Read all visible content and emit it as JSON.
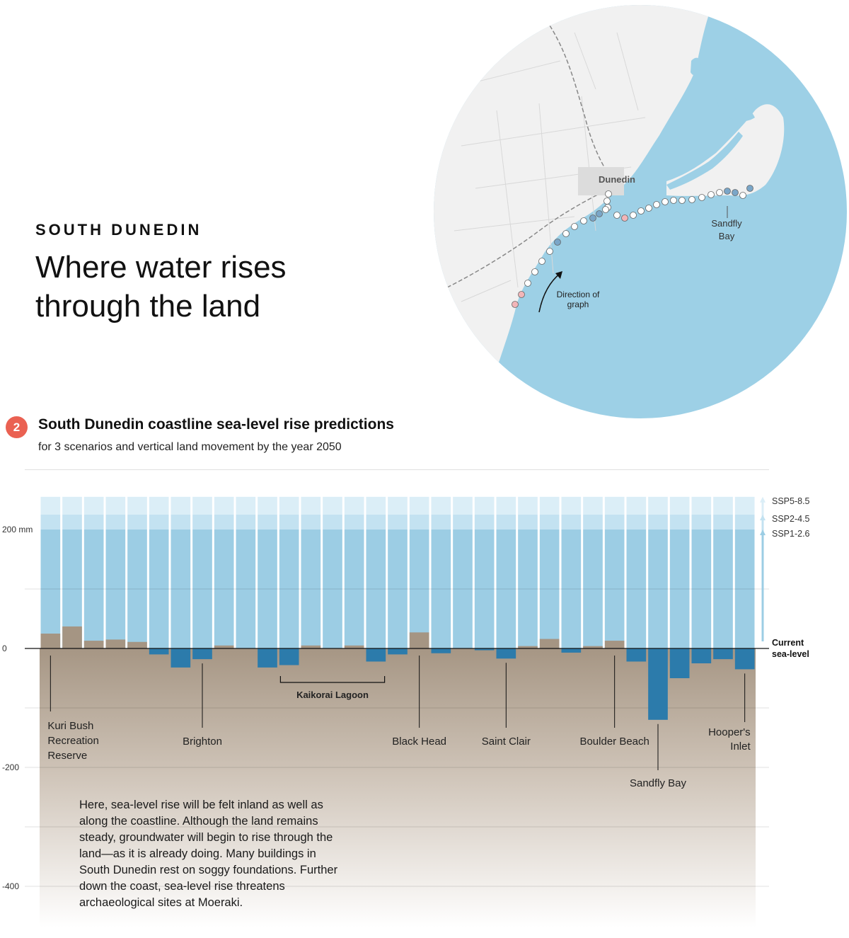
{
  "header": {
    "kicker": "SOUTH DUNEDIN",
    "headline": "Where water rises through the land"
  },
  "map": {
    "city_label": "Dunedin",
    "bay_label_line1": "Sandfly",
    "bay_label_line2": "Bay",
    "direction_line1": "Direction of",
    "direction_line2": "graph",
    "colors": {
      "sea": "#9dd0e6",
      "land": "#f0f0f0",
      "marker_neutral": "#ffffff",
      "marker_subsiding": "#7aa6c8",
      "marker_rising": "#f2b5b8"
    }
  },
  "chart_header": {
    "number": "2",
    "title": "South Dunedin coastline sea-level rise predictions",
    "subtitle": "for 3 scenarios and vertical land movement by the year 2050"
  },
  "chart_data": {
    "type": "bar",
    "ylabel": "mm",
    "ylim": [
      -460,
      255
    ],
    "yticks": [
      {
        "value": 200,
        "label": "200 mm"
      },
      {
        "value": 0,
        "label": "0"
      },
      {
        "value": -200,
        "label": "-200"
      },
      {
        "value": -400,
        "label": "-400"
      }
    ],
    "scenarios": [
      {
        "name": "SSP5-8.5",
        "value": 255,
        "color": "#dbeef7"
      },
      {
        "name": "SSP2-4.5",
        "value": 225,
        "color": "#c3e2f1"
      },
      {
        "name": "SSP1-2.6",
        "value": 200,
        "color": "#9ccde4"
      }
    ],
    "baseline_label": "Current sea-level",
    "vertical_land_movement": [
      25,
      37,
      13,
      15,
      11,
      -10,
      -32,
      -18,
      5,
      0,
      -32,
      -28,
      5,
      0,
      5,
      -22,
      -10,
      27,
      -8,
      0,
      -3,
      -17,
      4,
      16,
      -7,
      4,
      13,
      -22,
      -120,
      -50,
      -25,
      -18,
      -35
    ],
    "location_labels": [
      {
        "text": "Kuri Bush Recreation Reserve",
        "index": 0
      },
      {
        "text": "Brighton",
        "index": 7
      },
      {
        "text": "Kaikorai Lagoon",
        "index_start": 11,
        "index_end": 15
      },
      {
        "text": "Black Head",
        "index": 17
      },
      {
        "text": "Saint Clair",
        "index": 21
      },
      {
        "text": "Boulder Beach",
        "index": 26
      },
      {
        "text": "Sandfly Bay",
        "index": 28
      },
      {
        "text": "Hooper's Inlet",
        "index": 32
      }
    ],
    "colors": {
      "rise": "#a59583",
      "subsidence": "#2c7bab"
    }
  },
  "annotation": "Here, sea-level rise will be felt inland as well as along the coastline. Although the land remains steady, groundwater will begin to rise through the land—as it is already doing. Many buildings in South Dunedin rest on soggy foundations. Further down the coast, sea-level rise threatens archaeological sites at Moeraki."
}
